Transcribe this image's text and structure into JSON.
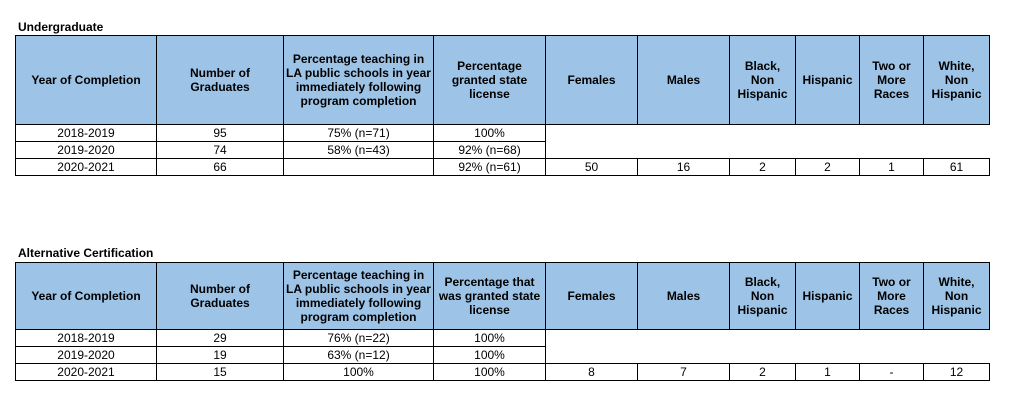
{
  "undergrad": {
    "title": "Undergraduate",
    "headers": [
      "Year of Completion",
      "Number of Graduates",
      "Percentage teaching in LA public schools in year immediately following program completion",
      "Percentage granted state license",
      "Females",
      "Males",
      "Black, Non Hispanic",
      "Hispanic",
      "Two or More Races",
      "White, Non Hispanic"
    ],
    "rows": [
      [
        "2018-2019",
        "95",
        "75% (n=71)",
        "100%"
      ],
      [
        "2019-2020",
        "74",
        "58% (n=43)",
        "92% (n=68)"
      ],
      [
        "2020-2021",
        "66",
        "",
        "92% (n=61)",
        "50",
        "16",
        "2",
        "2",
        "1",
        "61"
      ]
    ]
  },
  "altcert": {
    "title": "Alternative Certification",
    "headers": [
      "Year of Completion",
      "Number of Graduates",
      "Percentage teaching in LA public schools in year immediately following program completion",
      "Percentage that was granted state license",
      "Females",
      "Males",
      "Black, Non Hispanic",
      "Hispanic",
      "Two or More Races",
      "White, Non Hispanic"
    ],
    "rows": [
      [
        "2018-2019",
        "29",
        "76% (n=22)",
        "100%"
      ],
      [
        "2019-2020",
        "19",
        "63% (n=12)",
        "100%"
      ],
      [
        "2020-2021",
        "15",
        "100%",
        "100%",
        "8",
        "7",
        "2",
        "1",
        "-",
        "12"
      ]
    ]
  }
}
